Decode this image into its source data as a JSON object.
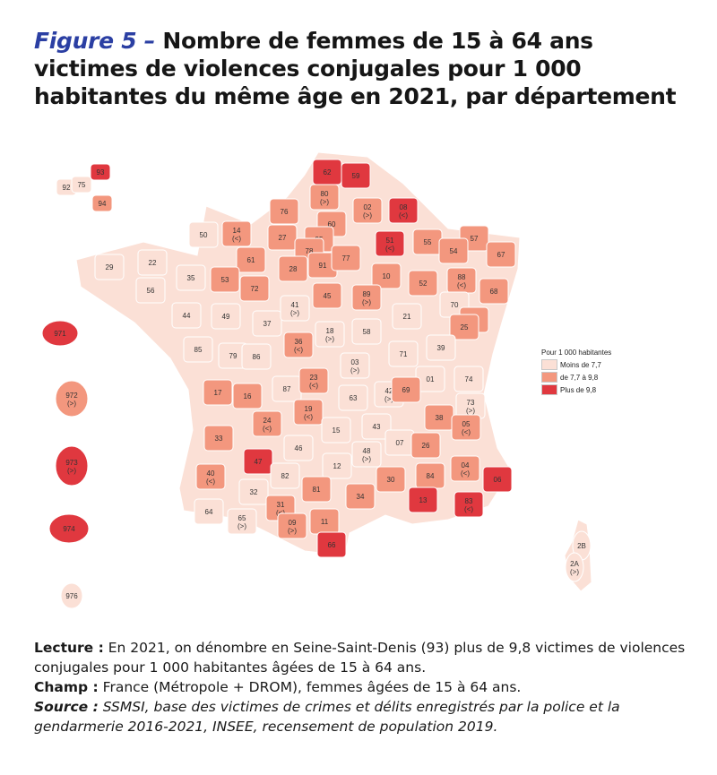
{
  "figure": {
    "label": "Figure 5 –",
    "title": "Nombre de femmes de 15 à 64 ans victimes de violences conjugales pour 1 000 habitantes du même âge en 2021, par département"
  },
  "legend": {
    "title": "Pour 1 000 habitantes",
    "classes": [
      {
        "label": "Moins de 7,7",
        "color": "#fbe0d6"
      },
      {
        "label": "de 7,7 à 9,8",
        "color": "#f3977e"
      },
      {
        "label": "Plus de 9,8",
        "color": "#e0383f"
      }
    ]
  },
  "map_data": {
    "departments": [
      {
        "code": "62",
        "class": 2
      },
      {
        "code": "59",
        "class": 2
      },
      {
        "code": "80",
        "mark": "(>)",
        "class": 1
      },
      {
        "code": "02",
        "mark": "(>)",
        "class": 1
      },
      {
        "code": "08",
        "mark": "(<)",
        "class": 2
      },
      {
        "code": "76",
        "class": 1
      },
      {
        "code": "60",
        "class": 1
      },
      {
        "code": "14",
        "mark": "(<)",
        "class": 1
      },
      {
        "code": "27",
        "class": 1
      },
      {
        "code": "50",
        "class": 0
      },
      {
        "code": "95",
        "class": 1
      },
      {
        "code": "93",
        "class": 2
      },
      {
        "code": "92",
        "class": 0
      },
      {
        "code": "75",
        "class": 0
      },
      {
        "code": "94",
        "class": 1
      },
      {
        "code": "78",
        "class": 1
      },
      {
        "code": "91",
        "class": 1
      },
      {
        "code": "77",
        "class": 1
      },
      {
        "code": "51",
        "mark": "(<)",
        "class": 2
      },
      {
        "code": "55",
        "class": 1
      },
      {
        "code": "57",
        "class": 1
      },
      {
        "code": "54",
        "class": 1
      },
      {
        "code": "67",
        "class": 1
      },
      {
        "code": "29",
        "class": 0
      },
      {
        "code": "22",
        "class": 0
      },
      {
        "code": "35",
        "class": 0
      },
      {
        "code": "56",
        "class": 0
      },
      {
        "code": "61",
        "class": 1
      },
      {
        "code": "53",
        "class": 1
      },
      {
        "code": "72",
        "class": 1
      },
      {
        "code": "28",
        "class": 1
      },
      {
        "code": "45",
        "class": 1
      },
      {
        "code": "10",
        "class": 1
      },
      {
        "code": "52",
        "class": 1
      },
      {
        "code": "88",
        "mark": "(<)",
        "class": 1
      },
      {
        "code": "68",
        "class": 1
      },
      {
        "code": "44",
        "class": 0
      },
      {
        "code": "49",
        "class": 0
      },
      {
        "code": "37",
        "class": 0
      },
      {
        "code": "41",
        "mark": "(>)",
        "class": 0
      },
      {
        "code": "89",
        "mark": "(>)",
        "class": 1
      },
      {
        "code": "21",
        "class": 0
      },
      {
        "code": "70",
        "class": 0
      },
      {
        "code": "90",
        "class": 1
      },
      {
        "code": "25",
        "class": 1
      },
      {
        "code": "85",
        "class": 0
      },
      {
        "code": "79",
        "class": 0
      },
      {
        "code": "86",
        "class": 0
      },
      {
        "code": "36",
        "mark": "(<)",
        "class": 1
      },
      {
        "code": "18",
        "mark": "(>)",
        "class": 0
      },
      {
        "code": "58",
        "class": 0
      },
      {
        "code": "71",
        "class": 0
      },
      {
        "code": "39",
        "class": 0
      },
      {
        "code": "17",
        "class": 1
      },
      {
        "code": "16",
        "class": 1
      },
      {
        "code": "87",
        "class": 0
      },
      {
        "code": "23",
        "mark": "(<)",
        "class": 1
      },
      {
        "code": "03",
        "mark": "(>)",
        "class": 0
      },
      {
        "code": "01",
        "class": 0
      },
      {
        "code": "74",
        "class": 0
      },
      {
        "code": "42",
        "mark": "(>)",
        "class": 0
      },
      {
        "code": "69",
        "class": 1
      },
      {
        "code": "73",
        "mark": "(>)",
        "class": 0
      },
      {
        "code": "63",
        "class": 0
      },
      {
        "code": "19",
        "mark": "(<)",
        "class": 1
      },
      {
        "code": "24",
        "mark": "(<)",
        "class": 1
      },
      {
        "code": "33",
        "class": 1
      },
      {
        "code": "38",
        "class": 1
      },
      {
        "code": "15",
        "class": 0
      },
      {
        "code": "43",
        "class": 0
      },
      {
        "code": "46",
        "class": 0
      },
      {
        "code": "47",
        "class": 2
      },
      {
        "code": "48",
        "mark": "(>)",
        "class": 0
      },
      {
        "code": "07",
        "class": 0
      },
      {
        "code": "26",
        "class": 1
      },
      {
        "code": "05",
        "mark": "(<)",
        "class": 1
      },
      {
        "code": "04",
        "mark": "(<)",
        "class": 1
      },
      {
        "code": "06",
        "class": 2
      },
      {
        "code": "40",
        "mark": "(<)",
        "class": 1
      },
      {
        "code": "82",
        "class": 0
      },
      {
        "code": "12",
        "class": 0
      },
      {
        "code": "30",
        "class": 1
      },
      {
        "code": "84",
        "class": 1
      },
      {
        "code": "81",
        "class": 1
      },
      {
        "code": "34",
        "class": 1
      },
      {
        "code": "13",
        "class": 2
      },
      {
        "code": "83",
        "mark": "(<)",
        "class": 2
      },
      {
        "code": "32",
        "class": 0
      },
      {
        "code": "31",
        "mark": "(<)",
        "class": 1
      },
      {
        "code": "11",
        "class": 1
      },
      {
        "code": "64",
        "class": 0
      },
      {
        "code": "65",
        "mark": "(>)",
        "class": 0
      },
      {
        "code": "09",
        "mark": "(>)",
        "class": 1
      },
      {
        "code": "66",
        "class": 2
      },
      {
        "code": "2B",
        "class": 0
      },
      {
        "code": "2A",
        "mark": "(>)",
        "class": 0
      },
      {
        "code": "971",
        "class": 2
      },
      {
        "code": "972",
        "mark": "(>)",
        "class": 1
      },
      {
        "code": "973",
        "mark": "(>)",
        "class": 2
      },
      {
        "code": "974",
        "class": 2
      },
      {
        "code": "976",
        "class": 0
      }
    ]
  },
  "notes": {
    "lecture_label": "Lecture :",
    "lecture_text": "En 2021, on dénombre en Seine-Saint-Denis (93) plus de 9,8 victimes de violences conjugales pour 1 000 habitantes âgées de 15 à 64 ans.",
    "champ_label": "Champ :",
    "champ_text": "France (Métropole + DROM), femmes âgées de 15 à 64 ans.",
    "source_label": "Source :",
    "source_text": "SSMSI, base des victimes de crimes et délits enregistrés par la police et la gendarmerie 2016-2021, INSEE, recensement de population 2019."
  }
}
